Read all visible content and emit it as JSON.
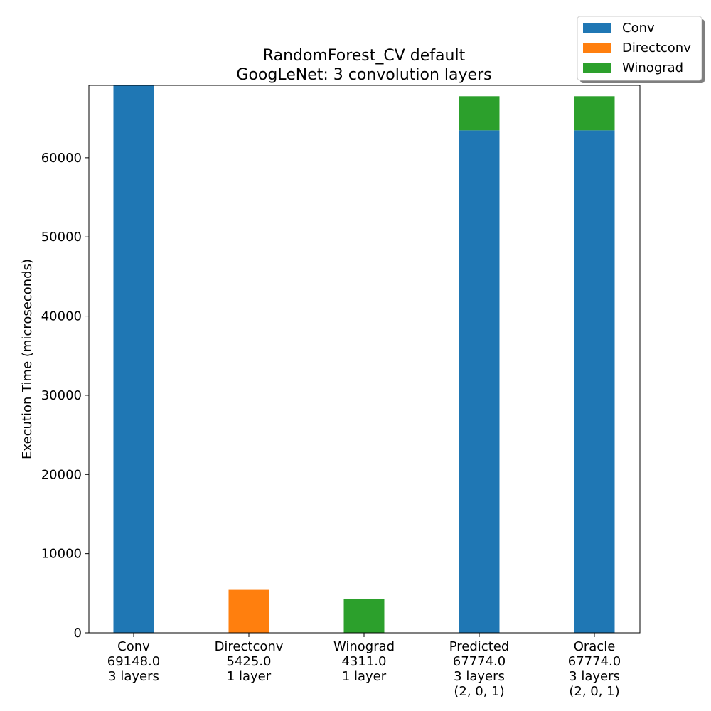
{
  "chart_data": {
    "type": "bar",
    "stacked": true,
    "title": "RandomForest_CV default",
    "subtitle": "GoogLeNet: 3 convolution layers",
    "xlabel": "",
    "ylabel": "Execution Time (microseconds)",
    "ylim": [
      0,
      69148
    ],
    "yticks": [
      0,
      10000,
      20000,
      30000,
      40000,
      50000,
      60000
    ],
    "grid": false,
    "legend_position": "top-right",
    "categories": [
      [
        "Conv",
        "69148.0",
        "3 layers"
      ],
      [
        "Directconv",
        "5425.0",
        "1 layer"
      ],
      [
        "Winograd",
        "4311.0",
        "1 layer"
      ],
      [
        "Predicted",
        "67774.0",
        "3 layers",
        "(2, 0, 1)"
      ],
      [
        "Oracle",
        "67774.0",
        "3 layers",
        "(2, 0, 1)"
      ]
    ],
    "series": [
      {
        "name": "Conv",
        "color": "#1f77b4",
        "values": [
          69148,
          0,
          0,
          63463,
          63463
        ]
      },
      {
        "name": "Directconv",
        "color": "#ff7f0e",
        "values": [
          0,
          5425,
          0,
          0,
          0
        ]
      },
      {
        "name": "Winograd",
        "color": "#2ca02c",
        "values": [
          0,
          0,
          4311,
          4311,
          4311
        ]
      }
    ]
  }
}
